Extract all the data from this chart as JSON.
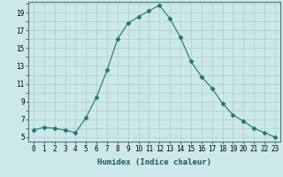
{
  "x": [
    0,
    1,
    2,
    3,
    4,
    5,
    6,
    7,
    8,
    9,
    10,
    11,
    12,
    13,
    14,
    15,
    16,
    17,
    18,
    19,
    20,
    21,
    22,
    23
  ],
  "y": [
    5.8,
    6.1,
    6.0,
    5.8,
    5.5,
    7.2,
    9.5,
    12.5,
    16.0,
    17.8,
    18.5,
    19.2,
    19.8,
    18.3,
    16.2,
    13.5,
    11.8,
    10.5,
    8.8,
    7.5,
    6.8,
    6.0,
    5.5,
    5.0
  ],
  "line_color": "#1a7a6e",
  "marker": "D",
  "marker_size": 2.5,
  "bg_color": "#cce8e8",
  "plot_bg_color": "#cce8e8",
  "grid_color": "#b0cccc",
  "xlabel": "Humidex (Indice chaleur)",
  "xlim": [
    -0.5,
    23.5
  ],
  "ylim": [
    4.5,
    20.2
  ],
  "yticks": [
    5,
    7,
    9,
    11,
    13,
    15,
    17,
    19
  ],
  "xticks": [
    0,
    1,
    2,
    3,
    4,
    5,
    6,
    7,
    8,
    9,
    10,
    11,
    12,
    13,
    14,
    15,
    16,
    17,
    18,
    19,
    20,
    21,
    22,
    23
  ],
  "xtick_labels": [
    "0",
    "1",
    "2",
    "3",
    "4",
    "5",
    "6",
    "7",
    "8",
    "9",
    "10",
    "11",
    "12",
    "13",
    "14",
    "15",
    "16",
    "17",
    "18",
    "19",
    "20",
    "21",
    "22",
    "23"
  ],
  "label_fontsize": 6.5,
  "tick_fontsize": 5.5
}
